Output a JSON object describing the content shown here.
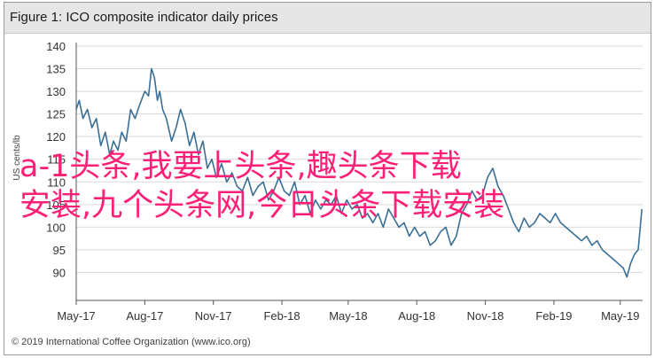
{
  "figure": {
    "title": "Figure 1: ICO composite indicator daily prices",
    "copyright": "© 2019 International Coffee Organization (www.ico.org)"
  },
  "overlay": {
    "line1": "a-1头条,我要上头条,趣头条下载",
    "line2": "安装,九个头条网,今日头条下载安装",
    "color": "#ff1f77"
  },
  "colors": {
    "line": "#3a6f95",
    "axis": "#555555",
    "title_band": "#e6e6e6"
  },
  "chart_data": {
    "type": "line",
    "ylabel": "US cents/lb",
    "xlabel": "",
    "ylim": [
      85,
      140
    ],
    "yticks": [
      90,
      95,
      100,
      105,
      110,
      115,
      120,
      125,
      130,
      135,
      140
    ],
    "xlim": [
      "2017-05-01",
      "2019-05-31"
    ],
    "xticks": [
      {
        "date": "2017-05-01",
        "label": "May-17"
      },
      {
        "date": "2017-08-01",
        "label": "Aug-17"
      },
      {
        "date": "2017-11-01",
        "label": "Nov-17"
      },
      {
        "date": "2018-02-01",
        "label": "Feb-18"
      },
      {
        "date": "2018-05-01",
        "label": "May-18"
      },
      {
        "date": "2018-08-01",
        "label": "Aug-18"
      },
      {
        "date": "2018-11-01",
        "label": "Nov-18"
      },
      {
        "date": "2019-02-01",
        "label": "Feb-19"
      },
      {
        "date": "2019-05-01",
        "label": "May-19"
      }
    ],
    "grid": "horizontal",
    "series": [
      {
        "x": [
          "2017-05-01",
          "2017-05-05",
          "2017-05-10",
          "2017-05-16",
          "2017-05-22",
          "2017-05-28",
          "2017-06-03",
          "2017-06-09",
          "2017-06-15",
          "2017-06-20",
          "2017-06-26",
          "2017-07-01",
          "2017-07-07",
          "2017-07-13",
          "2017-07-19",
          "2017-07-25",
          "2017-08-01",
          "2017-08-06",
          "2017-08-10",
          "2017-08-14",
          "2017-08-18",
          "2017-08-21",
          "2017-08-25",
          "2017-08-30",
          "2017-09-06",
          "2017-09-12",
          "2017-09-18",
          "2017-09-24",
          "2017-09-30",
          "2017-10-06",
          "2017-10-12",
          "2017-10-18",
          "2017-10-24",
          "2017-10-30",
          "2017-11-05",
          "2017-11-12",
          "2017-11-19",
          "2017-11-26",
          "2017-12-03",
          "2017-12-10",
          "2017-12-17",
          "2017-12-24",
          "2017-12-31",
          "2018-01-07",
          "2018-01-14",
          "2018-01-21",
          "2018-01-28",
          "2018-02-04",
          "2018-02-11",
          "2018-02-18",
          "2018-02-25",
          "2018-03-04",
          "2018-03-11",
          "2018-03-18",
          "2018-03-25",
          "2018-04-01",
          "2018-04-08",
          "2018-04-15",
          "2018-04-22",
          "2018-04-29",
          "2018-05-06",
          "2018-05-13",
          "2018-05-20",
          "2018-05-27",
          "2018-06-03",
          "2018-06-10",
          "2018-06-17",
          "2018-06-24",
          "2018-07-01",
          "2018-07-08",
          "2018-07-15",
          "2018-07-22",
          "2018-07-29",
          "2018-08-05",
          "2018-08-12",
          "2018-08-19",
          "2018-08-26",
          "2018-09-02",
          "2018-09-09",
          "2018-09-16",
          "2018-09-23",
          "2018-09-30",
          "2018-10-07",
          "2018-10-14",
          "2018-10-21",
          "2018-10-28",
          "2018-11-04",
          "2018-11-11",
          "2018-11-18",
          "2018-11-25",
          "2018-12-02",
          "2018-12-09",
          "2018-12-16",
          "2018-12-23",
          "2018-12-30",
          "2019-01-06",
          "2019-01-13",
          "2019-01-20",
          "2019-01-27",
          "2019-02-03",
          "2019-02-10",
          "2019-02-17",
          "2019-02-24",
          "2019-03-03",
          "2019-03-10",
          "2019-03-17",
          "2019-03-24",
          "2019-03-31",
          "2019-04-07",
          "2019-04-14",
          "2019-04-21",
          "2019-04-28",
          "2019-05-05",
          "2019-05-10",
          "2019-05-15",
          "2019-05-20",
          "2019-05-25",
          "2019-05-30"
        ],
        "y": [
          126,
          128,
          124,
          126,
          122,
          124,
          118,
          121,
          116,
          119,
          117,
          121,
          119,
          126,
          124,
          127,
          130,
          129,
          135,
          133,
          128,
          130,
          126,
          124,
          119,
          122,
          126,
          123,
          118,
          121,
          116,
          119,
          113,
          115,
          111,
          114,
          110,
          112,
          109,
          108,
          111,
          107,
          109,
          110,
          106,
          108,
          111,
          108,
          107,
          110,
          105,
          107,
          103,
          106,
          104,
          106,
          105,
          107,
          103,
          106,
          104,
          105,
          102,
          103,
          101,
          103,
          100,
          104,
          102,
          100,
          101,
          98,
          100,
          98,
          99,
          96,
          97,
          99,
          100,
          96,
          98,
          103,
          105,
          108,
          106,
          107,
          111,
          113,
          109,
          107,
          104,
          101,
          99,
          102,
          100,
          101,
          103,
          102,
          101,
          103,
          101,
          100,
          99,
          98,
          97,
          98,
          96,
          97,
          95,
          94,
          93,
          92,
          91,
          89,
          92,
          94,
          95,
          104
        ]
      }
    ]
  }
}
